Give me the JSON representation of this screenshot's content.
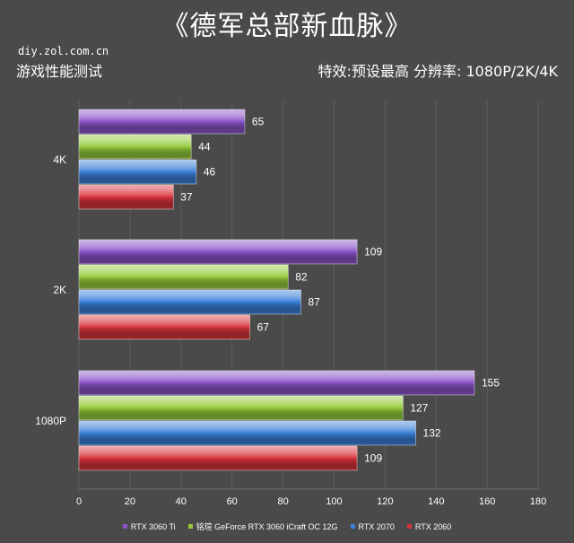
{
  "header": {
    "title": "《德军总部新血脉》",
    "source": "diy.zol.com.cn",
    "subtitle_left": "游戏性能测试",
    "subtitle_right": "特效:预设最高  分辨率: 1080P/2K/4K"
  },
  "chart_data": {
    "type": "bar",
    "orientation": "horizontal",
    "categories": [
      "4K",
      "2K",
      "1080P"
    ],
    "series": [
      {
        "name": "RTX 3060 Ti",
        "color": "#8a54c8",
        "values": [
          65,
          109,
          155
        ]
      },
      {
        "name": "铭瑄 GeForce RTX 3060 iCraft OC 12G",
        "color": "#96cc3c",
        "values": [
          44,
          82,
          127
        ]
      },
      {
        "name": "RTX 2070",
        "color": "#3a7fd8",
        "values": [
          46,
          87,
          132
        ]
      },
      {
        "name": "RTX 2060",
        "color": "#d8343c",
        "values": [
          37,
          67,
          109
        ]
      }
    ],
    "xlim": [
      0,
      180
    ],
    "xticks": [
      0,
      20,
      40,
      60,
      80,
      100,
      120,
      140,
      160,
      180
    ],
    "grid": true,
    "legend_position": "bottom"
  }
}
